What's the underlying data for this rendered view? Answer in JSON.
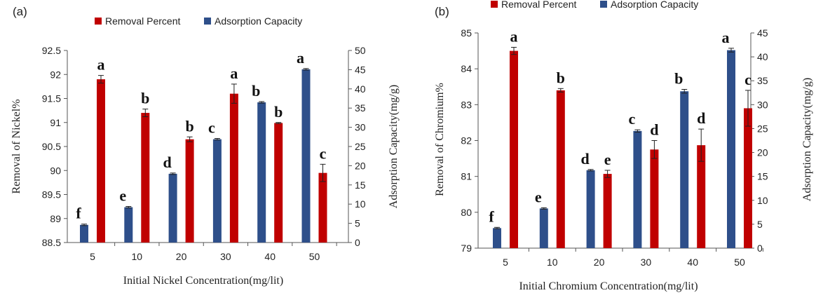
{
  "colors": {
    "removal": "#c00000",
    "adsorption": "#2e4f8a",
    "axis": "#555555",
    "errorbar": "#222222"
  },
  "chart_data": [
    {
      "type": "bar",
      "panel_label": "(a)",
      "categories": [
        "5",
        "10",
        "20",
        "30",
        "40",
        "50"
      ],
      "xlabel": "Initial Nickel Concentration(mg/lit)",
      "ylabel": "Removal of Nickel%",
      "y2label": "Adsorption Capacity(mg/g)",
      "ylim": [
        88.5,
        92.5
      ],
      "y2lim": [
        0,
        50
      ],
      "yticks": [
        "88.5",
        "89",
        "89.5",
        "90",
        "90.5",
        "91",
        "91.5",
        "92",
        "92.5"
      ],
      "y2ticks": [
        "0",
        "5",
        "10",
        "15",
        "20",
        "25",
        "30",
        "35",
        "40",
        "45",
        "50"
      ],
      "legend": [
        "Removal Percent",
        "Adsorption Capacity"
      ],
      "series": [
        {
          "name": "Adsorption Capacity",
          "axis": "right",
          "values": [
            4.6,
            9.2,
            17.9,
            26.9,
            36.5,
            45.1
          ],
          "errors": [
            0.2,
            0.2,
            0.2,
            0.2,
            0.2,
            0.2
          ],
          "letters": [
            "f",
            "e",
            "d",
            "c",
            "b",
            "a"
          ]
        },
        {
          "name": "Removal Percent",
          "axis": "left",
          "values": [
            91.9,
            91.2,
            90.65,
            91.6,
            90.99,
            89.95
          ],
          "errors": [
            0.08,
            0.08,
            0.05,
            0.2,
            0.01,
            0.18
          ],
          "letters": [
            "a",
            "b",
            "b",
            "a",
            "b",
            "c"
          ]
        }
      ]
    },
    {
      "type": "bar",
      "panel_label": "(b)",
      "categories": [
        "5",
        "10",
        "20",
        "30",
        "40",
        "50"
      ],
      "xlabel": "Initial Chromium Concentration(mg/lit)",
      "ylabel": "Removal of Chromium%",
      "y2label": "Adsorption Capacity(mg/g)",
      "ylim": [
        79,
        85
      ],
      "y2lim": [
        0,
        45
      ],
      "yticks": [
        "79",
        "80",
        "81",
        "82",
        "83",
        "84",
        "85"
      ],
      "y2ticks": [
        "0",
        "5",
        "10",
        "15",
        "20",
        "25",
        "30",
        "35",
        "40",
        "45"
      ],
      "legend": [
        "Removal Percent",
        "Adsorption Capacity"
      ],
      "series": [
        {
          "name": "Adsorption Capacity",
          "axis": "right",
          "values": [
            4.2,
            8.3,
            16.3,
            24.5,
            32.8,
            41.4
          ],
          "errors": [
            0.15,
            0.15,
            0.15,
            0.25,
            0.4,
            0.4
          ],
          "letters": [
            "f",
            "e",
            "d",
            "c",
            "b",
            "a"
          ]
        },
        {
          "name": "Removal Percent",
          "axis": "left",
          "values": [
            84.5,
            83.4,
            81.07,
            81.75,
            81.87,
            82.9
          ],
          "errors": [
            0.1,
            0.05,
            0.1,
            0.25,
            0.45,
            0.5
          ],
          "letters": [
            "a",
            "b",
            "e",
            "d",
            "d",
            "c"
          ]
        }
      ]
    }
  ]
}
